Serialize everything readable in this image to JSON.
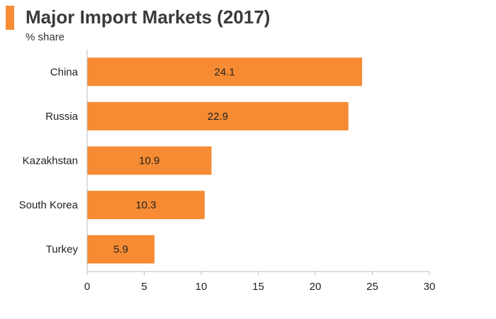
{
  "header": {
    "title": "Major Import Markets (2017)",
    "subtitle": "% share",
    "accent_color": "#f68b33"
  },
  "chart_data": {
    "type": "bar",
    "orientation": "horizontal",
    "title": "Major Import Markets (2017)",
    "subtitle": "% share",
    "categories": [
      "China",
      "Russia",
      "Kazakhstan",
      "South Korea",
      "Turkey"
    ],
    "values": [
      24.1,
      22.9,
      10.9,
      10.3,
      5.9
    ],
    "data_labels": [
      "24.1",
      "22.9",
      "10.9",
      "10.3",
      "5.9"
    ],
    "xlim": [
      0,
      30
    ],
    "x_ticks": [
      0,
      5,
      10,
      15,
      20,
      25,
      30
    ],
    "bar_color": "#f68b33",
    "grid": false,
    "legend": "none"
  }
}
